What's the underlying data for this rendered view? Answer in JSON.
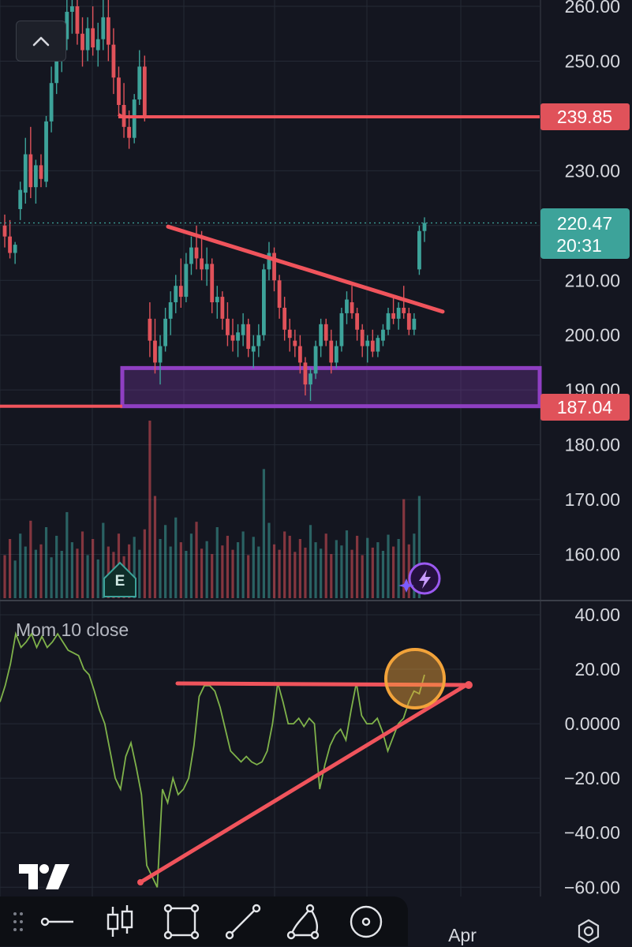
{
  "chart_data": [
    {
      "type": "candlestick",
      "title": "",
      "ylim": [
        152.5,
        262
      ],
      "y_ticks": [
        "260.00",
        "250.00",
        "240.00",
        "230.00",
        "220.00",
        "210.00",
        "200.00",
        "190.00",
        "180.00",
        "170.00",
        "160.00"
      ],
      "x_ticks": [
        "Apr"
      ],
      "grid": true,
      "last_price": {
        "value": 220.47,
        "label": "220.47",
        "countdown": "20:31"
      },
      "horizontal_lines": [
        {
          "name": "resistance",
          "value": 239.85,
          "label": "239.85"
        },
        {
          "name": "support",
          "value": 187.04,
          "label": "187.04"
        }
      ],
      "support_zone": {
        "top": 194.0,
        "bottom": 187.04
      },
      "descending_trendline": [
        [
          0.265,
          219.8
        ],
        [
          0.7,
          204.3
        ]
      ],
      "earnings_marker": "E",
      "candles": [
        [
          220.0,
          222.0,
          216.0,
          218.0
        ],
        [
          218.0,
          221.0,
          214.0,
          215.0
        ],
        [
          215.0,
          217.0,
          213.0,
          216.5
        ],
        [
          223.0,
          228.0,
          221.0,
          226.5
        ],
        [
          226.0,
          236.0,
          224.0,
          233.0
        ],
        [
          233.0,
          238.0,
          225.0,
          227.0
        ],
        [
          227.0,
          232.0,
          224.0,
          231.0
        ],
        [
          231.0,
          233.0,
          227.0,
          228.5
        ],
        [
          228.0,
          240.0,
          227.0,
          239.0
        ],
        [
          239.0,
          249.0,
          237.0,
          246.0
        ],
        [
          246.0,
          254.0,
          244.0,
          251.0
        ],
        [
          251.0,
          256.0,
          248.0,
          254.0
        ],
        [
          254.0,
          262.0,
          252.0,
          259.0
        ],
        [
          259.0,
          263.0,
          255.0,
          260.0
        ],
        [
          260.0,
          262.0,
          253.0,
          255.0
        ],
        [
          255.0,
          258.0,
          249.0,
          252.0
        ],
        [
          252.0,
          258.0,
          250.0,
          256.0
        ],
        [
          256.0,
          260.0,
          251.0,
          252.5
        ],
        [
          252.0,
          257.0,
          249.0,
          254.0
        ],
        [
          254.0,
          262.0,
          252.0,
          258.0
        ],
        [
          258.0,
          262.0,
          250.0,
          253.0
        ],
        [
          253.0,
          256.0,
          244.0,
          247.0
        ],
        [
          247.0,
          249.0,
          240.0,
          242.0
        ],
        [
          242.0,
          246.0,
          236.0,
          238.0
        ],
        [
          238.0,
          241.0,
          234.0,
          236.0
        ],
        [
          236.0,
          244.0,
          235.0,
          243.0
        ],
        [
          243.0,
          252.0,
          242.0,
          249.0
        ],
        [
          249.0,
          251.0,
          239.0,
          240.0
        ],
        [
          203.0,
          206.0,
          196.0,
          199.0
        ],
        [
          199.0,
          203.0,
          193.0,
          195.0
        ],
        [
          195.0,
          200.0,
          191.0,
          198.0
        ],
        [
          198.0,
          205.0,
          197.0,
          203.0
        ],
        [
          203.0,
          208.0,
          200.0,
          206.0
        ],
        [
          206.0,
          211.0,
          204.0,
          209.0
        ],
        [
          209.0,
          214.0,
          205.0,
          207.0
        ],
        [
          207.0,
          215.0,
          206.0,
          213.0
        ],
        [
          213.0,
          218.0,
          211.0,
          216.0
        ],
        [
          216.0,
          220.0,
          212.0,
          214.0
        ],
        [
          214.0,
          219.0,
          210.0,
          212.0
        ],
        [
          212.0,
          216.0,
          209.0,
          213.0
        ],
        [
          213.0,
          214.0,
          204.0,
          206.0
        ],
        [
          206.0,
          209.0,
          203.0,
          207.0
        ],
        [
          207.0,
          208.0,
          201.0,
          203.0
        ],
        [
          203.0,
          206.0,
          198.0,
          200.0
        ],
        [
          200.0,
          203.0,
          197.0,
          199.0
        ],
        [
          199.0,
          202.0,
          196.0,
          200.5
        ],
        [
          200.0,
          204.0,
          198.0,
          202.0
        ],
        [
          202.0,
          203.0,
          196.0,
          197.5
        ],
        [
          197.0,
          200.0,
          194.0,
          198.0
        ],
        [
          198.0,
          202.0,
          196.0,
          200.0
        ],
        [
          200.0,
          213.0,
          199.0,
          212.0
        ],
        [
          212.0,
          217.0,
          210.0,
          215.0
        ],
        [
          215.0,
          216.0,
          208.0,
          210.0
        ],
        [
          210.0,
          211.0,
          203.0,
          205.0
        ],
        [
          205.0,
          207.0,
          199.0,
          201.0
        ],
        [
          201.0,
          203.0,
          197.0,
          199.5
        ],
        [
          199.0,
          201.0,
          196.0,
          198.0
        ],
        [
          198.0,
          200.0,
          193.0,
          195.0
        ],
        [
          195.0,
          196.0,
          189.0,
          191.0
        ],
        [
          191.0,
          194.0,
          188.0,
          193.0
        ],
        [
          193.0,
          199.0,
          192.0,
          198.0
        ],
        [
          198.0,
          203.0,
          196.0,
          202.0
        ],
        [
          202.0,
          203.0,
          198.0,
          199.0
        ],
        [
          199.0,
          201.0,
          193.0,
          195.0
        ],
        [
          195.0,
          199.0,
          194.0,
          198.0
        ],
        [
          198.0,
          205.0,
          197.0,
          204.0
        ],
        [
          204.0,
          208.0,
          202.0,
          206.5
        ],
        [
          206.0,
          209.0,
          203.0,
          204.0
        ],
        [
          204.0,
          205.0,
          199.0,
          201.0
        ],
        [
          201.0,
          202.0,
          196.0,
          198.0
        ],
        [
          198.0,
          200.0,
          195.0,
          199.0
        ],
        [
          199.0,
          201.0,
          196.0,
          197.0
        ],
        [
          197.0,
          200.0,
          196.0,
          199.5
        ],
        [
          199.0,
          202.0,
          198.0,
          201.0
        ],
        [
          201.0,
          205.0,
          200.0,
          204.0
        ],
        [
          204.0,
          207.0,
          202.0,
          203.0
        ],
        [
          203.0,
          206.0,
          201.0,
          205.0
        ],
        [
          205.0,
          209.0,
          203.0,
          204.0
        ],
        [
          204.0,
          205.0,
          200.0,
          201.0
        ],
        [
          201.0,
          204.0,
          200.0,
          203.0
        ],
        [
          212.0,
          220.0,
          211.0,
          219.0
        ],
        [
          219.0,
          221.5,
          217.0,
          220.47
        ]
      ],
      "volume": [
        40,
        55,
        35,
        60,
        48,
        72,
        45,
        50,
        66,
        38,
        58,
        44,
        80,
        52,
        46,
        62,
        40,
        55,
        36,
        70,
        48,
        43,
        60,
        39,
        50,
        57,
        45,
        64,
        165,
        95,
        55,
        68,
        48,
        75,
        52,
        44,
        60,
        71,
        46,
        53,
        41,
        66,
        49,
        58,
        45,
        52,
        62,
        40,
        57,
        48,
        120,
        70,
        50,
        45,
        62,
        58,
        43,
        55,
        47,
        68,
        52,
        46,
        60,
        41,
        54,
        49,
        63,
        45,
        58,
        40,
        56,
        47,
        52,
        44,
        59,
        48,
        55,
        92,
        50,
        60,
        95
      ]
    },
    {
      "type": "line",
      "title": "Mom 10 close",
      "ylim": [
        -64,
        42
      ],
      "y_ticks": [
        "40.00",
        "20.00",
        "0.0000",
        "−20.00",
        "−40.00",
        "−60.00"
      ],
      "series": [
        {
          "color": "#7fb24a",
          "values": [
            8,
            14,
            22,
            33,
            28,
            30,
            33,
            28,
            32,
            28,
            30,
            33,
            30,
            27,
            26,
            25,
            20,
            18,
            12,
            5,
            0,
            -10,
            -20,
            -24,
            -12,
            -7,
            -16,
            -26,
            -52,
            -56,
            -60,
            -24,
            -29,
            -20,
            -26,
            -24,
            -20,
            -8,
            10,
            14,
            14,
            12,
            6,
            -2,
            -10,
            -12,
            -14,
            -12,
            -14,
            -15,
            -14,
            -10,
            0,
            15,
            8,
            0,
            0,
            2,
            -1,
            2,
            0,
            -24,
            -15,
            -8,
            -4,
            -2,
            -6,
            5,
            15,
            3,
            0,
            0,
            2,
            -3,
            -10,
            -5,
            0,
            2,
            8,
            12,
            11,
            18
          ]
        }
      ],
      "trendlines": [
        {
          "name": "momentum-resistance",
          "points": [
            [
              0.225,
              15
            ],
            [
              0.76,
              14
            ]
          ]
        },
        {
          "name": "momentum-support",
          "points": [
            [
              0.18,
              -59
            ],
            [
              0.76,
              14
            ]
          ]
        }
      ],
      "highlight": {
        "x": 0.54,
        "y": 16
      }
    }
  ],
  "ui": {
    "toolbar_icons": [
      "drag-handle-icon",
      "horizontal-line-icon",
      "candles-icon",
      "rectangle-icon",
      "trend-line-icon",
      "brush-icon",
      "circle-icon"
    ],
    "colors": {
      "bg": "#141620",
      "up": "#3da39a",
      "down": "#e0525a",
      "trend": "#f0545c",
      "zone": "#8f3fc2",
      "momentum": "#7fb24a",
      "highlight": "#f2a33a"
    }
  }
}
